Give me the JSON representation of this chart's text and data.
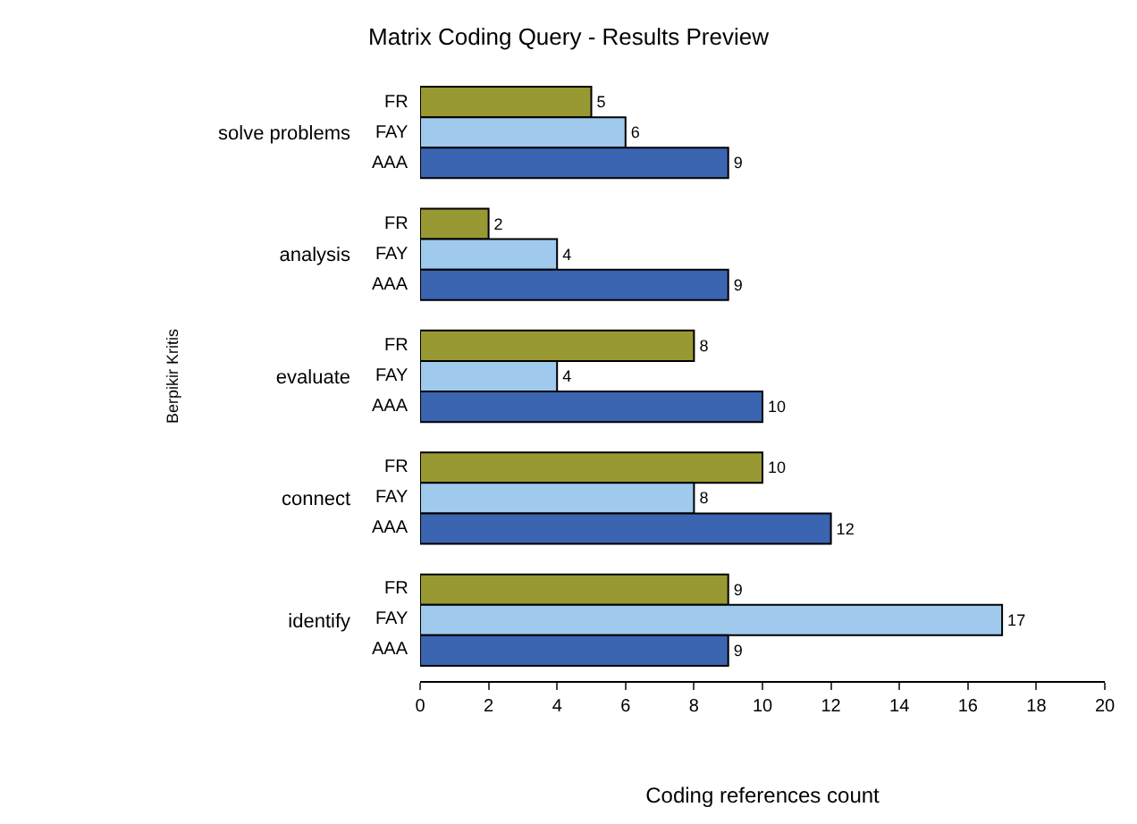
{
  "chart_data": {
    "type": "bar",
    "orientation": "horizontal",
    "title": "Matrix Coding Query - Results Preview",
    "xlabel": "Coding references count",
    "ylabel": "Berpikir Kritis",
    "categories": [
      "solve problems",
      "analysis",
      "evaluate",
      "connect",
      "identify"
    ],
    "series": [
      {
        "name": "FR",
        "color": "#999933",
        "values": [
          5,
          2,
          8,
          10,
          9
        ]
      },
      {
        "name": "FAY",
        "color": "#9fcaee",
        "values": [
          6,
          4,
          4,
          8,
          17
        ]
      },
      {
        "name": "AAA",
        "color": "#3b64b1",
        "values": [
          9,
          9,
          10,
          12,
          9
        ]
      }
    ],
    "xlim": [
      0,
      20
    ],
    "xticks": [
      0,
      2,
      4,
      6,
      8,
      10,
      12,
      14,
      16,
      18,
      20
    ],
    "data_labels": true,
    "legend": false
  }
}
